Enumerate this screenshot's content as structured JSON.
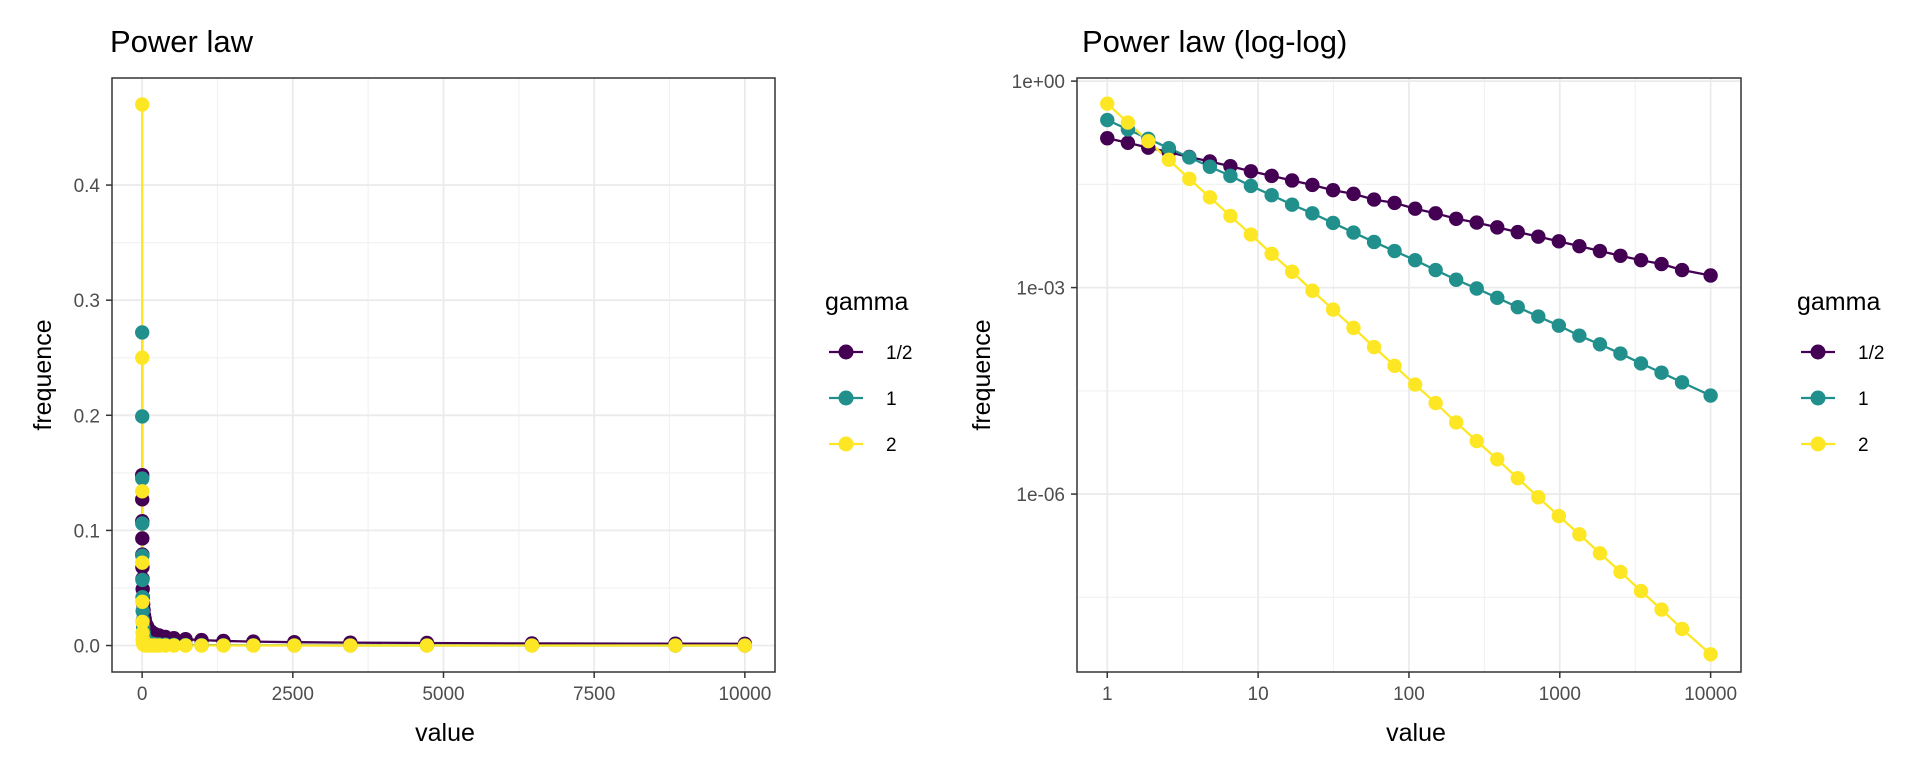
{
  "colors": {
    "half": "#440154",
    "one": "#21908C",
    "two": "#FDE725",
    "grid_major": "#ebebeb",
    "grid_minor": "#f2f2f2",
    "border": "#333333"
  },
  "chart_data": [
    {
      "type": "line",
      "title": "Power law",
      "xlabel": "value",
      "ylabel": "frequence",
      "x_scale": "linear",
      "y_scale": "linear",
      "xlim": [
        -500,
        10500
      ],
      "ylim": [
        -0.023,
        0.493
      ],
      "xticks": [
        0,
        2500,
        5000,
        7500,
        10000
      ],
      "xtick_labels": [
        "0",
        "2500",
        "5000",
        "7500",
        "10000"
      ],
      "yticks": [
        0,
        0.1,
        0.2,
        0.3,
        0.4
      ],
      "ytick_labels": [
        "0.0",
        "0.1",
        "0.2",
        "0.3",
        "0.4"
      ],
      "grid": true,
      "markers": true,
      "legend": {
        "title": "gamma",
        "position": "right",
        "labels": [
          "1/2",
          "1",
          "2"
        ]
      },
      "x": [
        1,
        1.37,
        1.87,
        2.56,
        3.5,
        4.79,
        6.55,
        8.96,
        12.3,
        16.8,
        22.9,
        31.4,
        42.9,
        58.7,
        80.3,
        109.9,
        150.3,
        205.6,
        281.3,
        384.9,
        526.6,
        720.5,
        985.8,
        1348.7,
        1845.3,
        2524.8,
        3454.3,
        4726.3,
        6466.5,
        8847.3,
        10000
      ],
      "series": [
        {
          "name": "1/2",
          "color": "#440154",
          "values": [
            0.148,
            0.127,
            0.108,
            0.093,
            0.079,
            0.068,
            0.058,
            0.049,
            0.042,
            0.036,
            0.031,
            0.026,
            0.023,
            0.019,
            0.017,
            0.014,
            0.012,
            0.01,
            0.0088,
            0.0075,
            0.0064,
            0.0055,
            0.0047,
            0.004,
            0.0034,
            0.0029,
            0.0025,
            0.0022,
            0.0018,
            0.0016,
            0.0015
          ]
        },
        {
          "name": "1",
          "color": "#21908C",
          "values": [
            0.272,
            0.199,
            0.145,
            0.106,
            0.078,
            0.057,
            0.042,
            0.03,
            0.022,
            0.016,
            0.012,
            0.0087,
            0.0063,
            0.0046,
            0.0034,
            0.0025,
            0.0018,
            0.0013,
            0.00097,
            0.00071,
            0.00052,
            0.00038,
            0.00028,
            0.0002,
            0.00015,
            0.00011,
            7.9e-05,
            5.8e-05,
            4.2e-05,
            3.1e-05,
            2.7e-05
          ]
        },
        {
          "name": "2",
          "color": "#FDE725",
          "values": [
            0.47,
            0.25,
            0.134,
            0.072,
            0.038,
            0.0205,
            0.011,
            0.0059,
            0.0031,
            0.0017,
            0.0009,
            0.00048,
            0.00026,
            0.000137,
            7.3e-05,
            3.9e-05,
            2.1e-05,
            1.1e-05,
            5.9e-06,
            3.2e-06,
            1.7e-06,
            9e-07,
            4.8e-07,
            2.6e-07,
            1.38e-07,
            7.4e-08,
            3.9e-08,
            2.1e-08,
            1.1e-08,
            6e-09,
            4.7e-09
          ]
        }
      ]
    },
    {
      "type": "line",
      "title": "Power law (log-log)",
      "xlabel": "value",
      "ylabel": "frequence",
      "x_scale": "log10",
      "y_scale": "log10",
      "xlim": [
        0.63,
        15900
      ],
      "ylim": [
        2.6e-09,
        1.11
      ],
      "xticks": [
        1,
        10,
        100,
        1000,
        10000
      ],
      "xtick_labels": [
        "1",
        "10",
        "100",
        "1000",
        "10000"
      ],
      "yticks": [
        1,
        0.001,
        1e-06
      ],
      "ytick_labels": [
        "1e+00",
        "1e-03",
        "1e-06"
      ],
      "grid": true,
      "markers": true,
      "legend": {
        "title": "gamma",
        "position": "right",
        "labels": [
          "1/2",
          "1",
          "2"
        ]
      },
      "x": [
        1,
        1.37,
        1.87,
        2.56,
        3.5,
        4.79,
        6.55,
        8.96,
        12.3,
        16.8,
        22.9,
        31.4,
        42.9,
        58.7,
        80.3,
        109.9,
        150.3,
        205.6,
        281.3,
        384.9,
        526.6,
        720.5,
        985.8,
        1348.7,
        1845.3,
        2524.8,
        3454.3,
        4726.3,
        6466.5,
        10000
      ],
      "series": [
        {
          "name": "1/2",
          "color": "#440154",
          "values": [
            0.148,
            0.127,
            0.108,
            0.093,
            0.079,
            0.068,
            0.058,
            0.049,
            0.042,
            0.036,
            0.031,
            0.026,
            0.023,
            0.019,
            0.017,
            0.014,
            0.012,
            0.01,
            0.0088,
            0.0075,
            0.0064,
            0.0055,
            0.0047,
            0.004,
            0.0034,
            0.0029,
            0.0025,
            0.0022,
            0.0018,
            0.0015
          ]
        },
        {
          "name": "1",
          "color": "#21908C",
          "values": [
            0.272,
            0.199,
            0.145,
            0.106,
            0.078,
            0.057,
            0.042,
            0.03,
            0.022,
            0.016,
            0.012,
            0.0087,
            0.0063,
            0.0046,
            0.0034,
            0.0025,
            0.0018,
            0.0013,
            0.00097,
            0.00071,
            0.00052,
            0.00038,
            0.00028,
            0.0002,
            0.00015,
            0.00011,
            7.9e-05,
            5.8e-05,
            4.2e-05,
            2.7e-05
          ]
        },
        {
          "name": "2",
          "color": "#FDE725",
          "values": [
            0.47,
            0.25,
            0.134,
            0.072,
            0.038,
            0.0205,
            0.011,
            0.0059,
            0.0031,
            0.0017,
            0.0009,
            0.00048,
            0.00026,
            0.000137,
            7.3e-05,
            3.9e-05,
            2.1e-05,
            1.1e-05,
            5.9e-06,
            3.2e-06,
            1.7e-06,
            9e-07,
            4.8e-07,
            2.6e-07,
            1.38e-07,
            7.4e-08,
            3.9e-08,
            2.1e-08,
            1.1e-08,
            4.7e-09
          ]
        }
      ]
    }
  ]
}
